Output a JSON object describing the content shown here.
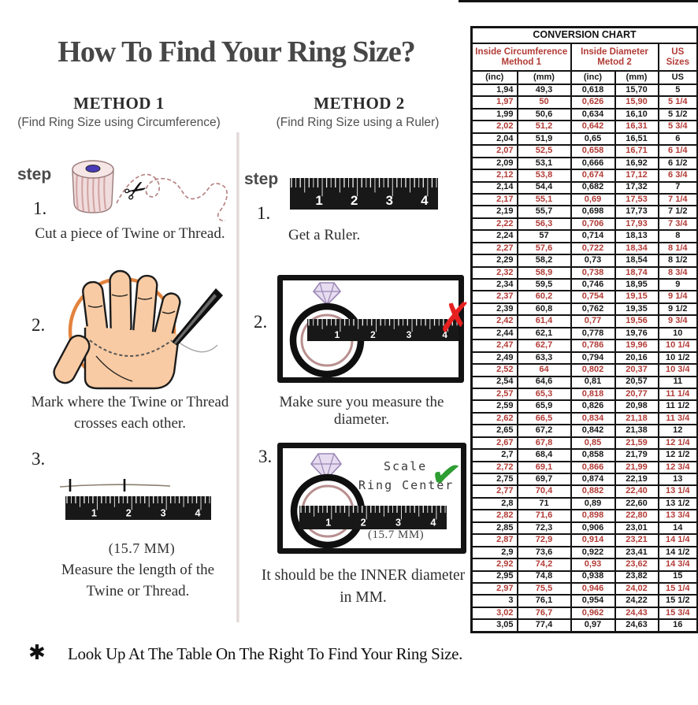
{
  "title": "How To Find Your Ring Size?",
  "icons": {
    "scissors": "✂",
    "x_mark": "✗",
    "check_mark": "✔"
  },
  "ruler_numbers": [
    "1",
    "2",
    "3",
    "4"
  ],
  "method1": {
    "heading": "METHOD 1",
    "subheading": "(Find Ring Size using Circumference)",
    "step_label": "step",
    "steps": [
      {
        "num": "1.",
        "text": "Cut a piece of Twine or Thread."
      },
      {
        "num": "2.",
        "line1": "Mark where the Twine or Thread",
        "line2": "crosses each other."
      },
      {
        "num": "3.",
        "measure": "(15.7 MM)",
        "line1": "Measure the length of the",
        "line2": "Twine or Thread."
      }
    ]
  },
  "method2": {
    "heading": "METHOD 2",
    "subheading": "(Find Ring Size using a Ruler)",
    "step_label": "step",
    "steps": [
      {
        "num": "1.",
        "text": "Get a Ruler."
      },
      {
        "num": "2.",
        "text": "Make sure you measure the diameter."
      },
      {
        "num": "3.",
        "scale_line1": "Scale",
        "scale_line2": "Ring Center",
        "measure": "(15.7 MM)",
        "line1": "It should be the INNER diameter",
        "line2": "in MM."
      }
    ]
  },
  "footnote": {
    "bullet": "✱",
    "text": "Look Up At The Table On The Right To Find Your Ring Size."
  },
  "conversion_chart": {
    "title": "CONVERSION CHART",
    "group_headers": [
      {
        "line1": "Inside Circumference",
        "line2": "Method 1"
      },
      {
        "line1": "Inside Diameter",
        "line2": "Metod 2"
      },
      {
        "line1": "US Sizes",
        "line2": ""
      }
    ],
    "unit_headers": [
      "(inc)",
      "(mm)",
      "(inc)",
      "(mm)",
      "US"
    ],
    "colors": {
      "red_text": "#b23b36",
      "black_text": "#1a1a1a"
    },
    "rows": [
      [
        "1,94",
        "49,3",
        "0,618",
        "15,70",
        "5"
      ],
      [
        "1,97",
        "50",
        "0,626",
        "15,90",
        "5 1/4"
      ],
      [
        "1,99",
        "50,6",
        "0,634",
        "16,10",
        "5 1/2"
      ],
      [
        "2,02",
        "51,2",
        "0,642",
        "16,31",
        "5 3/4"
      ],
      [
        "2,04",
        "51,9",
        "0,65",
        "16,51",
        "6"
      ],
      [
        "2,07",
        "52,5",
        "0,658",
        "16,71",
        "6 1/4"
      ],
      [
        "2,09",
        "53,1",
        "0,666",
        "16,92",
        "6 1/2"
      ],
      [
        "2,12",
        "53,8",
        "0,674",
        "17,12",
        "6 3/4"
      ],
      [
        "2,14",
        "54,4",
        "0,682",
        "17,32",
        "7"
      ],
      [
        "2,17",
        "55,1",
        "0,69",
        "17,53",
        "7 1/4"
      ],
      [
        "2,19",
        "55,7",
        "0,698",
        "17,73",
        "7 1/2"
      ],
      [
        "2,22",
        "56,3",
        "0,706",
        "17,93",
        "7 3/4"
      ],
      [
        "2,24",
        "57",
        "0,714",
        "18,13",
        "8"
      ],
      [
        "2,27",
        "57,6",
        "0,722",
        "18,34",
        "8 1/4"
      ],
      [
        "2,29",
        "58,2",
        "0,73",
        "18,54",
        "8 1/2"
      ],
      [
        "2,32",
        "58,9",
        "0,738",
        "18,74",
        "8 3/4"
      ],
      [
        "2,34",
        "59,5",
        "0,746",
        "18,95",
        "9"
      ],
      [
        "2,37",
        "60,2",
        "0,754",
        "19,15",
        "9 1/4"
      ],
      [
        "2,39",
        "60,8",
        "0,762",
        "19,35",
        "9 1/2"
      ],
      [
        "2,42",
        "61,4",
        "0,77",
        "19,56",
        "9 3/4"
      ],
      [
        "2,44",
        "62,1",
        "0,778",
        "19,76",
        "10"
      ],
      [
        "2,47",
        "62,7",
        "0,786",
        "19,96",
        "10 1/4"
      ],
      [
        "2,49",
        "63,3",
        "0,794",
        "20,16",
        "10 1/2"
      ],
      [
        "2,52",
        "64",
        "0,802",
        "20,37",
        "10 3/4"
      ],
      [
        "2,54",
        "64,6",
        "0,81",
        "20,57",
        "11"
      ],
      [
        "2,57",
        "65,3",
        "0,818",
        "20,77",
        "11 1/4"
      ],
      [
        "2,59",
        "65,9",
        "0,826",
        "20,98",
        "11 1/2"
      ],
      [
        "2,62",
        "66,5",
        "0,834",
        "21,18",
        "11 3/4"
      ],
      [
        "2,65",
        "67,2",
        "0,842",
        "21,38",
        "12"
      ],
      [
        "2,67",
        "67,8",
        "0,85",
        "21,59",
        "12 1/4"
      ],
      [
        "2,7",
        "68,4",
        "0,858",
        "21,79",
        "12 1/2"
      ],
      [
        "2,72",
        "69,1",
        "0,866",
        "21,99",
        "12 3/4"
      ],
      [
        "2,75",
        "69,7",
        "0,874",
        "22,19",
        "13"
      ],
      [
        "2,77",
        "70,4",
        "0,882",
        "22,40",
        "13 1/4"
      ],
      [
        "2,8",
        "71",
        "0,89",
        "22,60",
        "13 1/2"
      ],
      [
        "2,82",
        "71,6",
        "0,898",
        "22,80",
        "13 3/4"
      ],
      [
        "2,85",
        "72,3",
        "0,906",
        "23,01",
        "14"
      ],
      [
        "2,87",
        "72,9",
        "0,914",
        "23,21",
        "14 1/4"
      ],
      [
        "2,9",
        "73,6",
        "0,922",
        "23,41",
        "14 1/2"
      ],
      [
        "2,92",
        "74,2",
        "0,93",
        "23,62",
        "14 3/4"
      ],
      [
        "2,95",
        "74,8",
        "0,938",
        "23,82",
        "15"
      ],
      [
        "2,97",
        "75,5",
        "0,946",
        "24,02",
        "15 1/4"
      ],
      [
        "3",
        "76,1",
        "0,954",
        "24,22",
        "15 1/2"
      ],
      [
        "3,02",
        "76,7",
        "0,962",
        "24,43",
        "15 3/4"
      ],
      [
        "3,05",
        "77,4",
        "0,97",
        "24,63",
        "16"
      ]
    ]
  }
}
